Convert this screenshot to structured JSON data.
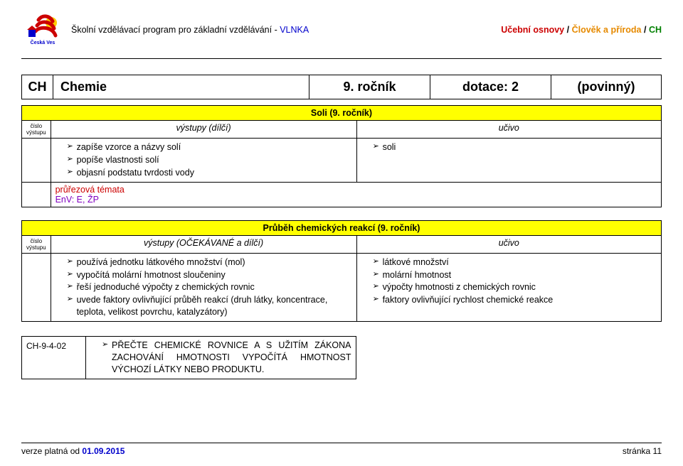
{
  "header": {
    "left_black": "Školní vzdělávací program pro základní vzdělávání - ",
    "left_blue": "VLNKA",
    "right_red": "Učební osnovy",
    "right_sep": " / ",
    "right_orange": "Člověk a příroda",
    "right_sep2": " / ",
    "right_green": "CH",
    "logo_top": "Česká Ves"
  },
  "title": {
    "c1": "CH",
    "c2": "Chemie",
    "c3": "9. ročník",
    "c4": "dotace: 2",
    "c5": "(povinný)"
  },
  "sec1": {
    "header": "Soli (9. ročník)",
    "num_label": "číslo výstupu",
    "left_label": "výstupy (dílčí)",
    "right_label": "učivo",
    "left_items": [
      "zapíše vzorce a názvy solí",
      "popíše vlastnosti solí",
      "objasní podstatu tvrdosti vody"
    ],
    "right_items": [
      "soli"
    ],
    "topics_label": "průřezová témata",
    "topics_val": "EnV: E, ŽP"
  },
  "sec2": {
    "header": "Průběh chemických reakcí (9. ročník)",
    "num_label": "číslo výstupu",
    "left_label": "výstupy (OČEKÁVANÉ a dílčí)",
    "right_label": "učivo",
    "left_items": [
      "používá jednotku látkového množství (mol)",
      "vypočítá molární hmotnost sloučeniny",
      "řeší jednoduché výpočty z chemických rovnic",
      "uvede faktory ovlivňující průběh reakcí (druh látky, koncentrace, teplota, velikost povrchu, katalyzátory)"
    ],
    "right_items": [
      "látkové množství",
      "molární hmotnost",
      "výpočty hmotnosti z chemických rovnic",
      "faktory ovlivňující rychlost chemické reakce"
    ]
  },
  "outcome": {
    "code": "CH-9-4-02",
    "text": "PŘEČTE CHEMICKÉ ROVNICE A S UŽITÍM ZÁKONA ZACHOVÁNÍ HMOTNOSTI VYPOČÍTÁ HMOTNOST VÝCHOZÍ LÁTKY NEBO PRODUKTU."
  },
  "footer": {
    "left_black": "verze platná od ",
    "left_blue": "01.09.2015",
    "right": "stránka 11"
  },
  "colors": {
    "blue": "#0000cc",
    "red": "#cc0000",
    "orange": "#e68a00",
    "green": "#008000",
    "purple": "#8000c0",
    "yellow": "#ffff00"
  }
}
